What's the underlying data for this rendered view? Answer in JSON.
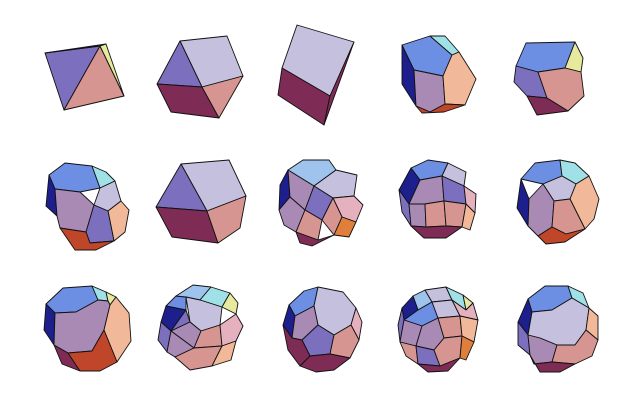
{
  "figure": {
    "rows": 3,
    "columns": 5,
    "background": "#ffffff",
    "edge_color": "#111111",
    "palette": {
      "lavender": "#c4c0dd",
      "violet": "#7c6fbd",
      "salmon": "#d69590",
      "blue": "#6d8fe3",
      "navy": "#1d1f8c",
      "maroon": "#7e2c55",
      "mauve": "#a98ab5",
      "peach": "#f1b99a",
      "orange": "#e07f3c",
      "rust": "#c0462a",
      "pink": "#e5b1bf",
      "cyan": "#9fe1e7",
      "yellow": "#e6ea9f",
      "sky": "#9ec4ee"
    },
    "solids": [
      {
        "name": "octahedron",
        "row": 0,
        "col": 0
      },
      {
        "name": "truncated-tetrahedron",
        "row": 0,
        "col": 1
      },
      {
        "name": "cube",
        "row": 0,
        "col": 2
      },
      {
        "name": "truncated-octahedron",
        "row": 0,
        "col": 3
      },
      {
        "name": "truncated-cube",
        "row": 0,
        "col": 4
      },
      {
        "name": "rhombicuboctahedron",
        "row": 1,
        "col": 0
      },
      {
        "name": "cuboctahedron",
        "row": 1,
        "col": 1
      },
      {
        "name": "icosidodecahedron-like",
        "row": 1,
        "col": 2
      },
      {
        "name": "small-rhombicuboctahedron",
        "row": 1,
        "col": 3
      },
      {
        "name": "truncated-cuboctahedron",
        "row": 1,
        "col": 4
      },
      {
        "name": "truncated-dodecahedron",
        "row": 2,
        "col": 0
      },
      {
        "name": "snub-cube",
        "row": 2,
        "col": 1
      },
      {
        "name": "truncated-icosahedron",
        "row": 2,
        "col": 2
      },
      {
        "name": "rhombicosidodecahedron",
        "row": 2,
        "col": 3
      },
      {
        "name": "great-rhombicosidodecahedron",
        "row": 2,
        "col": 4
      }
    ]
  }
}
